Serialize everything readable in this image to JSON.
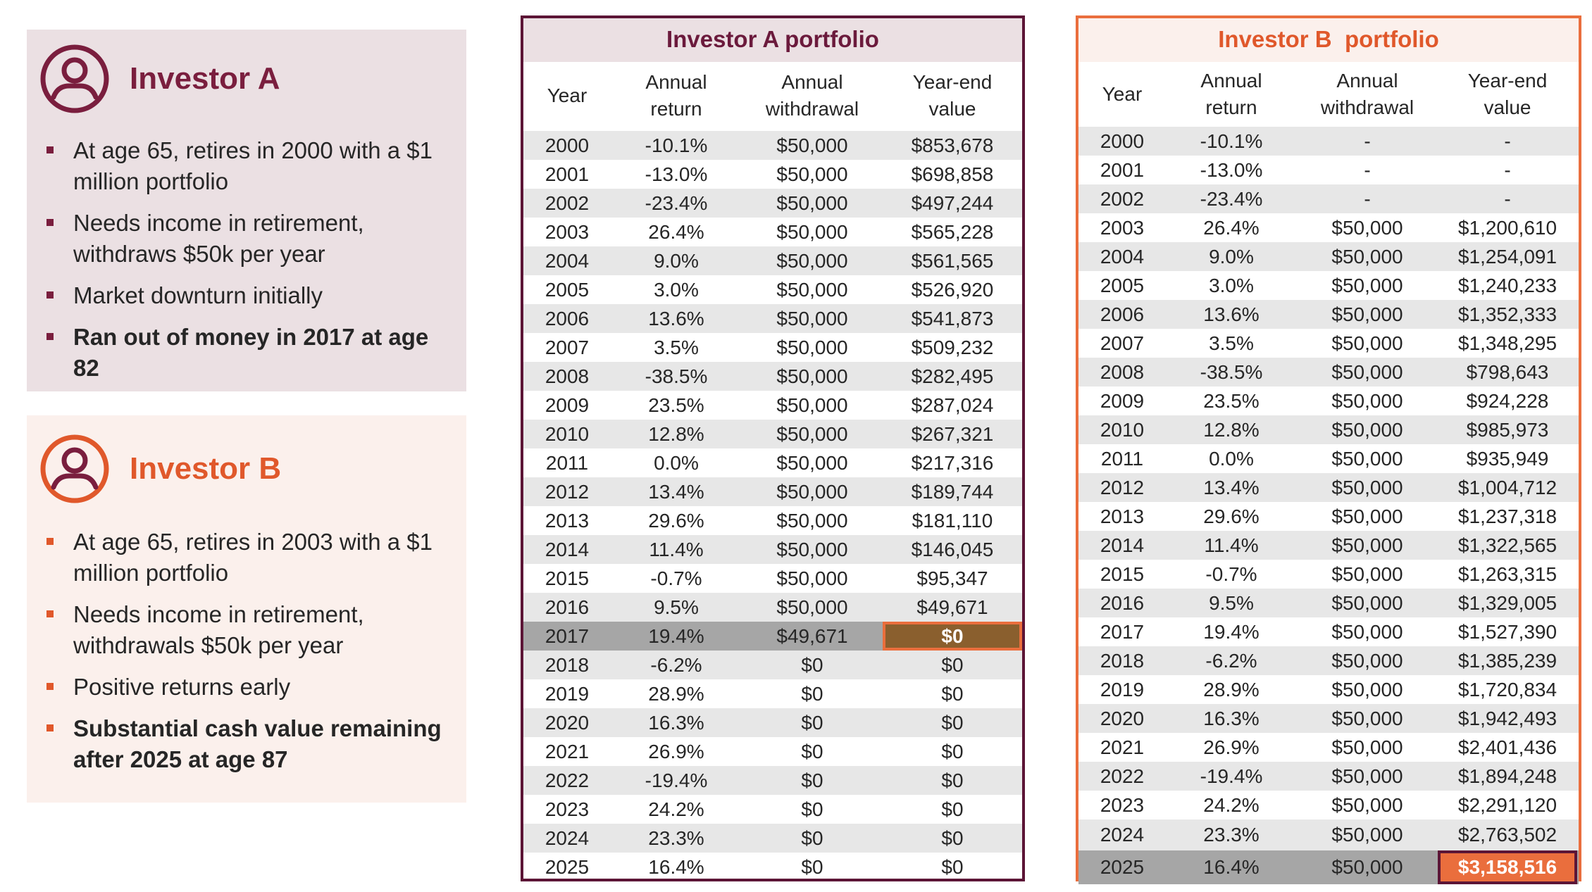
{
  "investor_a": {
    "name": "Investor A",
    "bullets": [
      {
        "text": "At age 65, retires in 2000 with a $1 million portfolio",
        "bold": false
      },
      {
        "text": "Needs income in retirement, withdraws $50k per year",
        "bold": false
      },
      {
        "text": "Market downturn initially",
        "bold": false
      },
      {
        "text": "Ran out of money in 2017 at age 82",
        "bold": true
      }
    ]
  },
  "investor_b": {
    "name": "Investor B",
    "bullets": [
      {
        "text": "At age 65, retires in 2003 with a $1 million portfolio",
        "bold": false
      },
      {
        "text": "Needs income in retirement, withdrawals $50k per year",
        "bold": false
      },
      {
        "text": "Positive returns early",
        "bold": false
      },
      {
        "text": "Substantial cash value remaining after 2025 at age 87",
        "bold": true
      }
    ]
  },
  "colors": {
    "investor_a": "#7a1e3e",
    "investor_b": "#e0582b",
    "highlight_a": "#8a5f2e",
    "highlight_b": "#ea6e3d"
  },
  "icons": {
    "investor_a": "user-circle-icon",
    "investor_b": "user-circle-icon"
  },
  "portfolio_a": {
    "title": "Investor A portfolio",
    "headers": {
      "year": "Year",
      "return": "Annual\nreturn",
      "withdrawal": "Annual\nwithdrawal",
      "value": "Year-end\nvalue"
    },
    "highlight_year": "2017",
    "rows": [
      [
        "2000",
        "-10.1%",
        "$50,000",
        "$853,678"
      ],
      [
        "2001",
        "-13.0%",
        "$50,000",
        "$698,858"
      ],
      [
        "2002",
        "-23.4%",
        "$50,000",
        "$497,244"
      ],
      [
        "2003",
        "26.4%",
        "$50,000",
        "$565,228"
      ],
      [
        "2004",
        "9.0%",
        "$50,000",
        "$561,565"
      ],
      [
        "2005",
        "3.0%",
        "$50,000",
        "$526,920"
      ],
      [
        "2006",
        "13.6%",
        "$50,000",
        "$541,873"
      ],
      [
        "2007",
        "3.5%",
        "$50,000",
        "$509,232"
      ],
      [
        "2008",
        "-38.5%",
        "$50,000",
        "$282,495"
      ],
      [
        "2009",
        "23.5%",
        "$50,000",
        "$287,024"
      ],
      [
        "2010",
        "12.8%",
        "$50,000",
        "$267,321"
      ],
      [
        "2011",
        "0.0%",
        "$50,000",
        "$217,316"
      ],
      [
        "2012",
        "13.4%",
        "$50,000",
        "$189,744"
      ],
      [
        "2013",
        "29.6%",
        "$50,000",
        "$181,110"
      ],
      [
        "2014",
        "11.4%",
        "$50,000",
        "$146,045"
      ],
      [
        "2015",
        "-0.7%",
        "$50,000",
        "$95,347"
      ],
      [
        "2016",
        "9.5%",
        "$50,000",
        "$49,671"
      ],
      [
        "2017",
        "19.4%",
        "$49,671",
        "$0"
      ],
      [
        "2018",
        "-6.2%",
        "$0",
        "$0"
      ],
      [
        "2019",
        "28.9%",
        "$0",
        "$0"
      ],
      [
        "2020",
        "16.3%",
        "$0",
        "$0"
      ],
      [
        "2021",
        "26.9%",
        "$0",
        "$0"
      ],
      [
        "2022",
        "-19.4%",
        "$0",
        "$0"
      ],
      [
        "2023",
        "24.2%",
        "$0",
        "$0"
      ],
      [
        "2024",
        "23.3%",
        "$0",
        "$0"
      ],
      [
        "2025",
        "16.4%",
        "$0",
        "$0"
      ]
    ]
  },
  "portfolio_b": {
    "title": "Investor B  portfolio",
    "headers": {
      "year": "Year",
      "return": "Annual\nreturn",
      "withdrawal": "Annual\nwithdrawal",
      "value": "Year-end\nvalue"
    },
    "highlight_year": "2025",
    "rows": [
      [
        "2000",
        "-10.1%",
        "-",
        "-"
      ],
      [
        "2001",
        "-13.0%",
        "-",
        "-"
      ],
      [
        "2002",
        "-23.4%",
        "-",
        "-"
      ],
      [
        "2003",
        "26.4%",
        "$50,000",
        "$1,200,610"
      ],
      [
        "2004",
        "9.0%",
        "$50,000",
        "$1,254,091"
      ],
      [
        "2005",
        "3.0%",
        "$50,000",
        "$1,240,233"
      ],
      [
        "2006",
        "13.6%",
        "$50,000",
        "$1,352,333"
      ],
      [
        "2007",
        "3.5%",
        "$50,000",
        "$1,348,295"
      ],
      [
        "2008",
        "-38.5%",
        "$50,000",
        "$798,643"
      ],
      [
        "2009",
        "23.5%",
        "$50,000",
        "$924,228"
      ],
      [
        "2010",
        "12.8%",
        "$50,000",
        "$985,973"
      ],
      [
        "2011",
        "0.0%",
        "$50,000",
        "$935,949"
      ],
      [
        "2012",
        "13.4%",
        "$50,000",
        "$1,004,712"
      ],
      [
        "2013",
        "29.6%",
        "$50,000",
        "$1,237,318"
      ],
      [
        "2014",
        "11.4%",
        "$50,000",
        "$1,322,565"
      ],
      [
        "2015",
        "-0.7%",
        "$50,000",
        "$1,263,315"
      ],
      [
        "2016",
        "9.5%",
        "$50,000",
        "$1,329,005"
      ],
      [
        "2017",
        "19.4%",
        "$50,000",
        "$1,527,390"
      ],
      [
        "2018",
        "-6.2%",
        "$50,000",
        "$1,385,239"
      ],
      [
        "2019",
        "28.9%",
        "$50,000",
        "$1,720,834"
      ],
      [
        "2020",
        "16.3%",
        "$50,000",
        "$1,942,493"
      ],
      [
        "2021",
        "26.9%",
        "$50,000",
        "$2,401,436"
      ],
      [
        "2022",
        "-19.4%",
        "$50,000",
        "$1,894,248"
      ],
      [
        "2023",
        "24.2%",
        "$50,000",
        "$2,291,120"
      ],
      [
        "2024",
        "23.3%",
        "$50,000",
        "$2,763,502"
      ],
      [
        "2025",
        "16.4%",
        "$50,000",
        "$3,158,516"
      ]
    ]
  }
}
